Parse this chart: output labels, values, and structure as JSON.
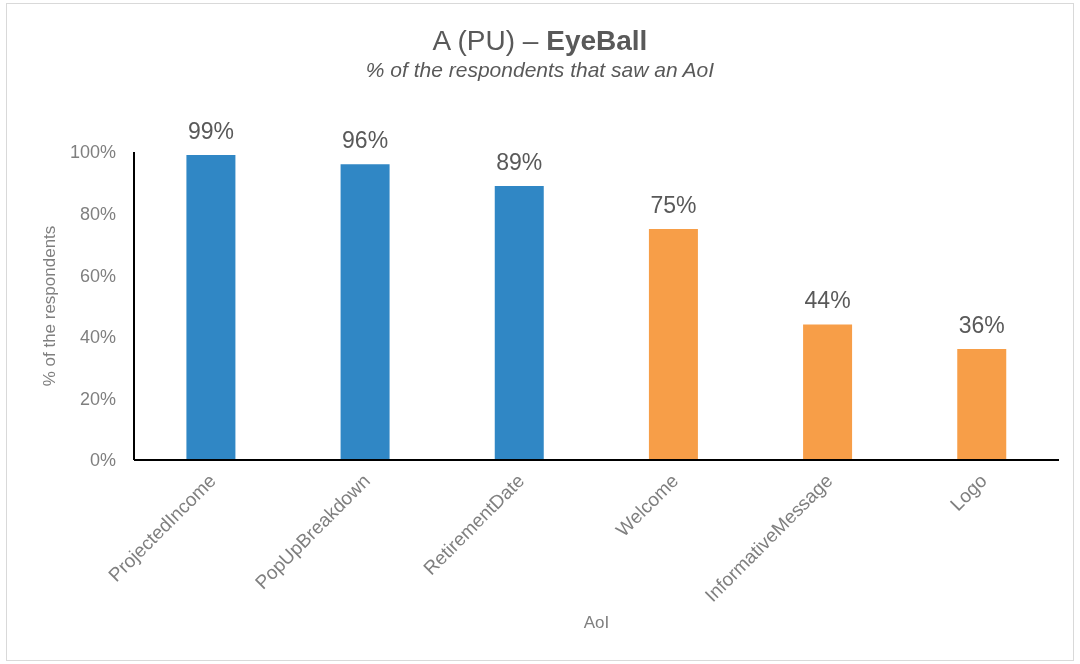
{
  "chart_data": {
    "type": "bar",
    "title": "A (PU) – EyeBall",
    "subtitle": "% of the respondents that saw an AoI",
    "xlabel": "AoI",
    "ylabel": "% of the respondents",
    "categories": [
      "ProjectedIncome",
      "PopUpBreakdown",
      "RetirementDate",
      "Welcome",
      "InformativeMessage",
      "Logo"
    ],
    "values": [
      99,
      96,
      89,
      75,
      44,
      36
    ],
    "colors": [
      "#3087c5",
      "#3087c5",
      "#3087c5",
      "#f79e48",
      "#f79e48",
      "#f79e48"
    ],
    "value_labels": [
      "99%",
      "96%",
      "89%",
      "75%",
      "44%",
      "36%"
    ],
    "ylim": [
      0,
      100
    ],
    "yticks": [
      {
        "value": 0,
        "label": "0%"
      },
      {
        "value": 20,
        "label": "20%"
      },
      {
        "value": 40,
        "label": "40%"
      },
      {
        "value": 60,
        "label": "60%"
      },
      {
        "value": 80,
        "label": "80%"
      },
      {
        "value": 100,
        "label": "100%"
      }
    ]
  }
}
